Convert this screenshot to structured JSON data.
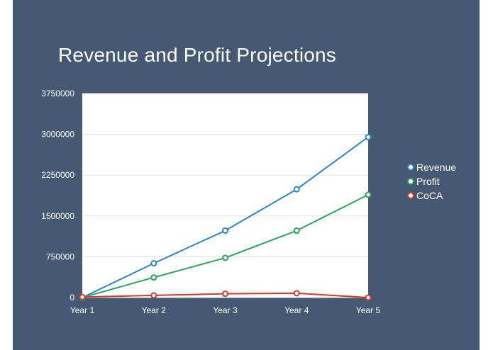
{
  "chart_data": {
    "type": "line",
    "title": "Revenue and Profit Projections",
    "xlabel": "",
    "ylabel": "",
    "categories": [
      "Year 1",
      "Year 2",
      "Year 3",
      "Year 4",
      "Year 5"
    ],
    "ylim": [
      0,
      3750000
    ],
    "yticks": [
      "0",
      "750000",
      "1500000",
      "2250000",
      "3000000",
      "3750000"
    ],
    "grid": true,
    "legend_position": "right",
    "series": [
      {
        "name": "Revenue",
        "color": "#2f86c7",
        "values": [
          0,
          630000,
          1230000,
          1990000,
          2950000
        ]
      },
      {
        "name": "Profit",
        "color": "#2aa55b",
        "values": [
          0,
          370000,
          730000,
          1230000,
          1890000
        ]
      },
      {
        "name": "CoCA",
        "color": "#d13a2c",
        "values": [
          10000,
          40000,
          70000,
          80000,
          0
        ]
      }
    ]
  },
  "colors": {
    "background": "#455a72",
    "plot": "#ffffff",
    "grid": "#e3e3e3"
  }
}
